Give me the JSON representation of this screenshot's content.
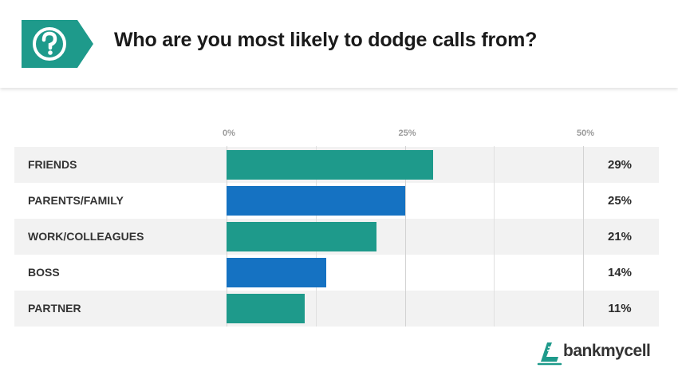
{
  "header": {
    "title": "Who are you most likely to dodge calls from?",
    "icon": "question-mark-icon",
    "badge_color": "#1e9a8b"
  },
  "chart_data": {
    "type": "bar",
    "orientation": "horizontal",
    "title": "Who are you most likely to dodge calls from?",
    "categories": [
      "FRIENDS",
      "PARENTS/FAMILY",
      "WORK/COLLEAGUES",
      "BOSS",
      "PARTNER"
    ],
    "values": [
      29,
      25,
      21,
      14,
      11
    ],
    "value_labels": [
      "29%",
      "25%",
      "21%",
      "14%",
      "11%"
    ],
    "bar_colors": [
      "#1e9a8b",
      "#1572c2",
      "#1e9a8b",
      "#1572c2",
      "#1e9a8b"
    ],
    "xlim": [
      0,
      50
    ],
    "ticks": [
      0,
      25,
      50
    ],
    "tick_labels": [
      "0%",
      "25%",
      "50%"
    ],
    "xlabel": "",
    "ylabel": "",
    "grid": true,
    "legend": "none"
  },
  "brand": {
    "name": "bankmycell",
    "icon": "bankmycell-logo-icon",
    "color": "#1e9a8b"
  }
}
